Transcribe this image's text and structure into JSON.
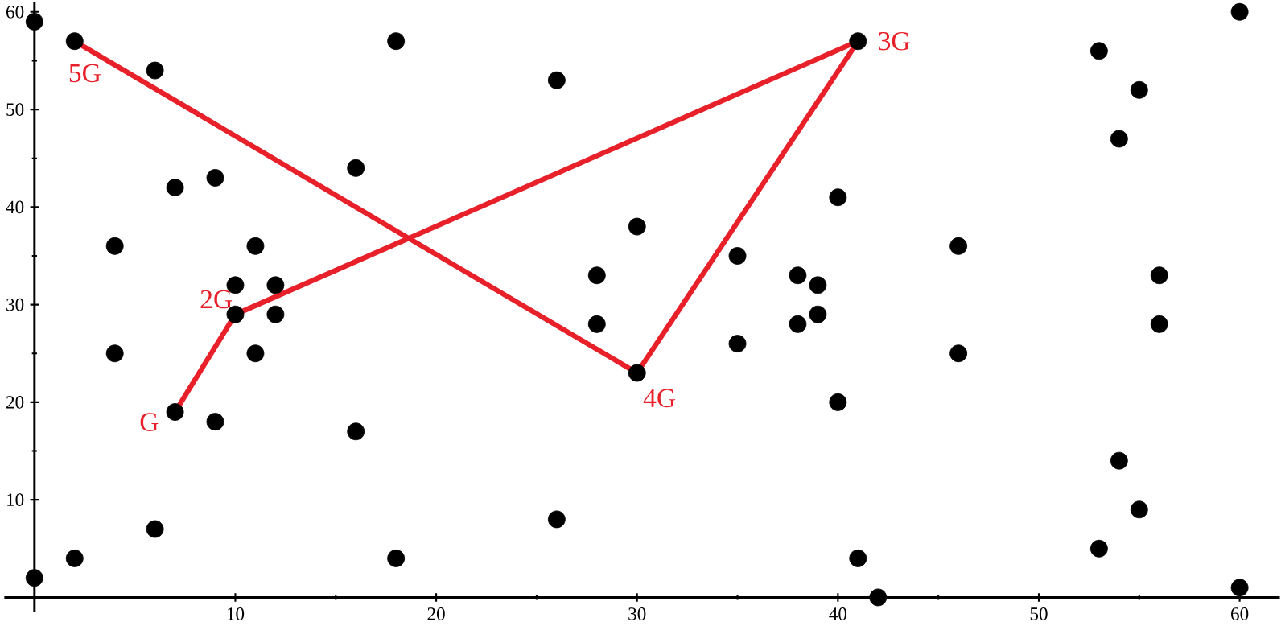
{
  "chart_data": {
    "type": "scatter",
    "xlim": [
      -1.5,
      62
    ],
    "ylim": [
      -1.5,
      61
    ],
    "xticks": [
      10,
      20,
      30,
      40,
      50,
      60
    ],
    "yticks": [
      10,
      20,
      30,
      40,
      50,
      60
    ],
    "grid": false,
    "marker": "circle",
    "series": [
      {
        "color": "#000000",
        "x": [
          0,
          2,
          6,
          7,
          9,
          4,
          11,
          10,
          12,
          16,
          18,
          26,
          10,
          12,
          4,
          11,
          7,
          9,
          16,
          6,
          2,
          0,
          18,
          26,
          41,
          30,
          35,
          28,
          28,
          40,
          38,
          39,
          38,
          39,
          35,
          30,
          40,
          46,
          46,
          53,
          55,
          54,
          56,
          56,
          54,
          55,
          53,
          41,
          42,
          60,
          60
        ],
        "values": [
          59,
          57,
          54,
          42,
          43,
          36,
          36,
          32,
          32,
          44,
          57,
          53,
          29,
          29,
          25,
          25,
          19,
          18,
          17,
          7,
          4,
          2,
          4,
          8,
          57,
          38,
          35,
          33,
          28,
          41,
          33,
          32,
          28,
          29,
          26,
          23,
          20,
          36,
          25,
          56,
          52,
          47,
          33,
          28,
          14,
          9,
          5,
          4,
          0,
          60,
          1
        ]
      },
      {
        "type": "line",
        "color": "#e8202a",
        "marker": "none",
        "x": [
          7,
          10,
          41,
          30,
          2
        ],
        "values": [
          19,
          29,
          57,
          23,
          57
        ]
      }
    ],
    "annotations": [
      {
        "text": "G",
        "x": 7,
        "y": 19
      },
      {
        "text": "2G",
        "x": 10,
        "y": 29
      },
      {
        "text": "3G",
        "x": 41,
        "y": 57
      },
      {
        "text": "4G",
        "x": 30,
        "y": 23
      },
      {
        "text": "5G",
        "x": 2,
        "y": 57
      }
    ]
  }
}
